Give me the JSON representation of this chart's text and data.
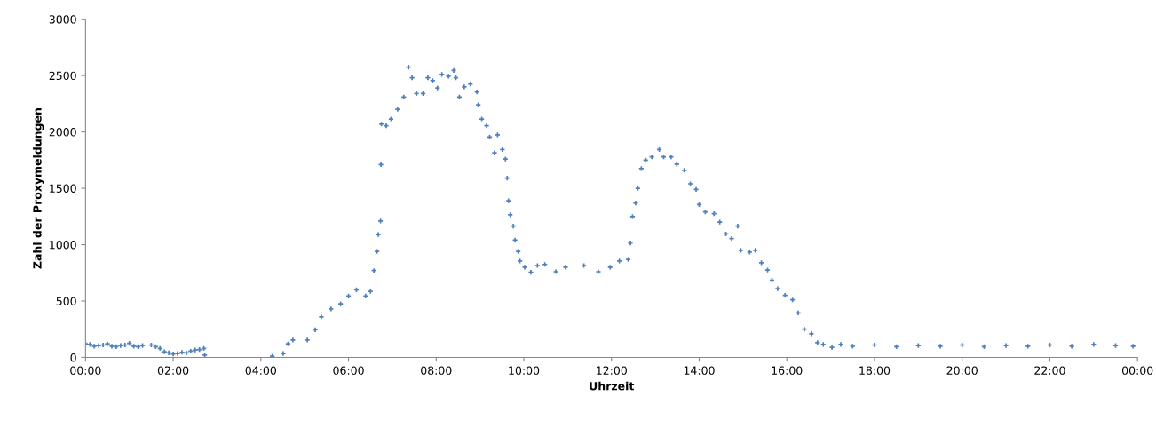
{
  "chart_data": {
    "type": "scatter",
    "xlabel": "Uhrzeit",
    "ylabel": "Zahl der Proxymeldungen",
    "color": "#4f81bd",
    "marker": "cross",
    "grid": false,
    "legend": false,
    "xlim": [
      0,
      24
    ],
    "ylim": [
      0,
      3000
    ],
    "xticks": [
      {
        "value": 0,
        "label": "00:00"
      },
      {
        "value": 2,
        "label": "02:00"
      },
      {
        "value": 4,
        "label": "04:00"
      },
      {
        "value": 6,
        "label": "06:00"
      },
      {
        "value": 8,
        "label": "08:00"
      },
      {
        "value": 10,
        "label": "10:00"
      },
      {
        "value": 12,
        "label": "12:00"
      },
      {
        "value": 14,
        "label": "14:00"
      },
      {
        "value": 16,
        "label": "16:00"
      },
      {
        "value": 18,
        "label": "18:00"
      },
      {
        "value": 20,
        "label": "20:00"
      },
      {
        "value": 22,
        "label": "22:00"
      },
      {
        "value": 24,
        "label": "00:00"
      }
    ],
    "yticks": [
      0,
      500,
      1000,
      1500,
      2000,
      2500,
      3000
    ],
    "x": [
      0.0,
      0.1,
      0.2,
      0.3,
      0.4,
      0.5,
      0.6,
      0.7,
      0.8,
      0.9,
      1.0,
      1.1,
      1.2,
      1.3,
      1.5,
      1.6,
      1.7,
      1.8,
      1.9,
      2.0,
      2.1,
      2.2,
      2.3,
      2.4,
      2.5,
      2.6,
      2.7,
      2.72,
      4.26,
      4.51,
      4.62,
      4.73,
      5.06,
      5.24,
      5.38,
      5.6,
      5.82,
      6.0,
      6.18,
      6.39,
      6.5,
      6.58,
      6.65,
      6.68,
      6.73,
      6.74,
      6.75,
      6.86,
      6.97,
      7.12,
      7.26,
      7.37,
      7.45,
      7.55,
      7.7,
      7.81,
      7.92,
      8.03,
      8.13,
      8.28,
      8.4,
      8.45,
      8.53,
      8.64,
      8.78,
      8.93,
      8.96,
      9.04,
      9.15,
      9.22,
      9.33,
      9.4,
      9.51,
      9.58,
      9.62,
      9.65,
      9.69,
      9.76,
      9.8,
      9.87,
      9.91,
      10.02,
      10.16,
      10.31,
      10.48,
      10.73,
      10.95,
      11.37,
      11.7,
      11.97,
      12.18,
      12.38,
      12.43,
      12.48,
      12.55,
      12.6,
      12.68,
      12.78,
      12.92,
      13.09,
      13.19,
      13.36,
      13.49,
      13.66,
      13.8,
      13.93,
      14.0,
      14.14,
      14.34,
      14.47,
      14.61,
      14.74,
      14.88,
      14.95,
      15.15,
      15.28,
      15.42,
      15.56,
      15.66,
      15.79,
      15.96,
      16.13,
      16.26,
      16.4,
      16.56,
      16.7,
      16.83,
      17.03,
      17.23,
      17.5,
      18.0,
      18.5,
      19.0,
      19.5,
      20.0,
      20.5,
      21.0,
      21.5,
      22.0,
      22.5,
      23.0,
      23.5,
      23.9
    ],
    "values": [
      120,
      115,
      100,
      105,
      110,
      120,
      100,
      95,
      105,
      110,
      125,
      100,
      95,
      105,
      110,
      95,
      80,
      50,
      40,
      30,
      35,
      45,
      40,
      55,
      65,
      70,
      80,
      20,
      10,
      35,
      120,
      155,
      155,
      245,
      360,
      430,
      475,
      545,
      600,
      545,
      585,
      770,
      940,
      1090,
      1210,
      1710,
      2070,
      2055,
      2115,
      2200,
      2310,
      2575,
      2480,
      2340,
      2340,
      2480,
      2455,
      2390,
      2510,
      2495,
      2545,
      2480,
      2310,
      2400,
      2425,
      2355,
      2240,
      2115,
      2055,
      1955,
      1815,
      1975,
      1845,
      1760,
      1590,
      1390,
      1265,
      1165,
      1040,
      940,
      855,
      800,
      755,
      815,
      825,
      760,
      800,
      815,
      760,
      800,
      855,
      870,
      1015,
      1250,
      1370,
      1500,
      1675,
      1750,
      1780,
      1845,
      1780,
      1780,
      1715,
      1660,
      1540,
      1490,
      1355,
      1290,
      1275,
      1200,
      1095,
      1055,
      1165,
      950,
      935,
      950,
      840,
      775,
      685,
      610,
      550,
      510,
      395,
      250,
      210,
      130,
      115,
      90,
      115,
      100,
      110,
      95,
      105,
      100,
      110,
      95,
      105,
      100,
      110,
      100,
      115,
      105,
      100
    ]
  }
}
